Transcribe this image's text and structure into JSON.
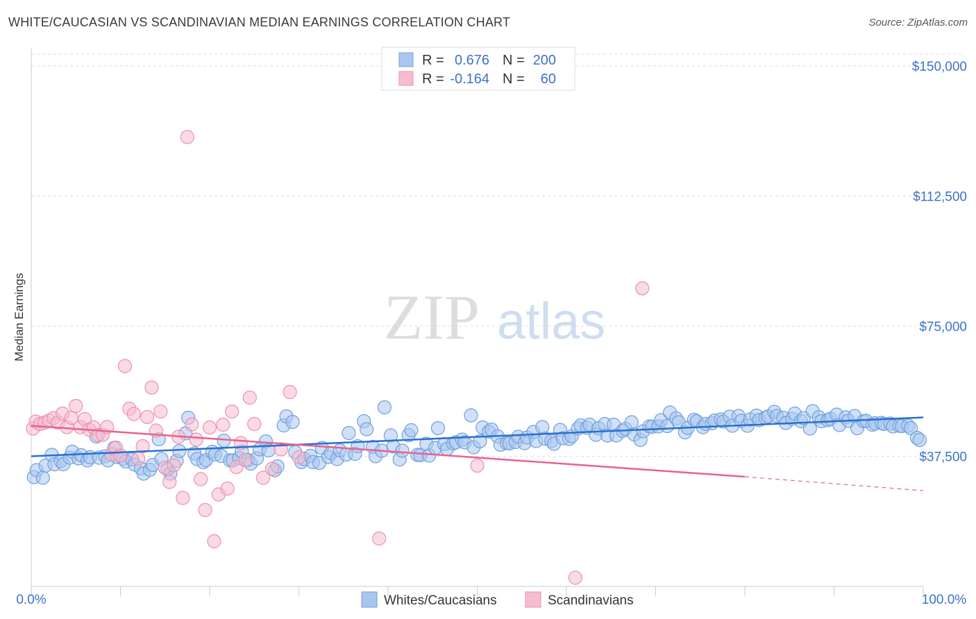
{
  "title": "WHITE/CAUCASIAN VS SCANDINAVIAN MEDIAN EARNINGS CORRELATION CHART",
  "source": "Source: ZipAtlas.com",
  "watermark": {
    "zip": "ZIP",
    "atlas": "atlas"
  },
  "colors": {
    "blue_fill": "#a9c6ef",
    "blue_stroke": "#6f9fde",
    "blue_line": "#2a6fcf",
    "pink_fill": "#f6bccf",
    "pink_stroke": "#ee8fae",
    "pink_line": "#e8628f",
    "tick_text": "#3d72c7",
    "grid": "#d9dde3"
  },
  "legend": {
    "rows": [
      {
        "r_label": "R =",
        "r_value": "0.676",
        "n_label": "N =",
        "n_value": "200"
      },
      {
        "r_label": "R =",
        "r_value": "-0.164",
        "n_label": "N =",
        "n_value": "60"
      }
    ]
  },
  "bottom_legend": [
    "Whites/Caucasians",
    "Scandinavians"
  ],
  "chart_data": {
    "type": "scatter",
    "title": "WHITE/CAUCASIAN VS SCANDINAVIAN MEDIAN EARNINGS CORRELATION CHART",
    "xlabel": "",
    "ylabel": "Median Earnings",
    "xlim": [
      0,
      100
    ],
    "ylim": [
      0,
      155000
    ],
    "x_tick_labels": [
      "0.0%",
      "100.0%"
    ],
    "y_ticks": [
      37500,
      75000,
      112500,
      150000
    ],
    "y_tick_labels": [
      "$37,500",
      "$75,000",
      "$112,500",
      "$150,000"
    ],
    "grid": true,
    "legend_position": "top-center",
    "series": [
      {
        "name": "Whites/Caucasians",
        "r": 0.676,
        "n": 200,
        "trend": {
          "x0": 0,
          "y0": 37500,
          "x1": 100,
          "y1": 48700
        },
        "points": [
          [
            0.3,
            31500
          ],
          [
            0.6,
            33500
          ],
          [
            1.3,
            31300
          ],
          [
            1.6,
            34800
          ],
          [
            2.3,
            37900
          ],
          [
            2.6,
            35200
          ],
          [
            3.3,
            36100
          ],
          [
            3.6,
            35200
          ],
          [
            4.3,
            37100
          ],
          [
            4.6,
            38800
          ],
          [
            5.3,
            36900
          ],
          [
            5.6,
            37800
          ],
          [
            6.3,
            36300
          ],
          [
            6.6,
            37200
          ],
          [
            7.3,
            43200
          ],
          [
            7.6,
            37100
          ],
          [
            8.3,
            37500
          ],
          [
            8.6,
            36300
          ],
          [
            9.3,
            39900
          ],
          [
            9.6,
            37300
          ],
          [
            10.3,
            36800
          ],
          [
            10.6,
            36000
          ],
          [
            11.3,
            36600
          ],
          [
            11.6,
            35100
          ],
          [
            12.3,
            34000
          ],
          [
            12.6,
            32500
          ],
          [
            13.3,
            33600
          ],
          [
            13.6,
            35000
          ],
          [
            14.3,
            42400
          ],
          [
            14.6,
            36700
          ],
          [
            15.3,
            33800
          ],
          [
            15.6,
            32500
          ],
          [
            16.3,
            36200
          ],
          [
            16.6,
            39000
          ],
          [
            17.3,
            44100
          ],
          [
            17.6,
            48600
          ],
          [
            18.3,
            38300
          ],
          [
            18.6,
            36700
          ],
          [
            19.3,
            35800
          ],
          [
            19.6,
            36400
          ],
          [
            20.3,
            38800
          ],
          [
            20.6,
            38000
          ],
          [
            21.3,
            37600
          ],
          [
            21.6,
            42000
          ],
          [
            22.3,
            36300
          ],
          [
            22.6,
            36300
          ],
          [
            23.3,
            37000
          ],
          [
            23.6,
            38900
          ],
          [
            24.3,
            36400
          ],
          [
            24.6,
            35400
          ],
          [
            25.3,
            36900
          ],
          [
            25.6,
            39500
          ],
          [
            26.3,
            41800
          ],
          [
            26.6,
            39200
          ],
          [
            27.3,
            33500
          ],
          [
            27.6,
            34600
          ],
          [
            28.3,
            46400
          ],
          [
            28.6,
            49000
          ],
          [
            29.3,
            47400
          ],
          [
            29.6,
            38700
          ],
          [
            30.3,
            35800
          ],
          [
            30.6,
            36700
          ],
          [
            31.3,
            37600
          ],
          [
            31.6,
            35800
          ],
          [
            32.3,
            35600
          ],
          [
            32.6,
            39900
          ],
          [
            33.3,
            37300
          ],
          [
            33.6,
            38400
          ],
          [
            34.3,
            36700
          ],
          [
            34.6,
            39200
          ],
          [
            35.3,
            38000
          ],
          [
            35.6,
            44200
          ],
          [
            36.3,
            38200
          ],
          [
            36.6,
            40400
          ],
          [
            37.3,
            47600
          ],
          [
            37.6,
            45300
          ],
          [
            38.3,
            40200
          ],
          [
            38.6,
            37500
          ],
          [
            39.3,
            39100
          ],
          [
            39.6,
            51600
          ],
          [
            40.3,
            43500
          ],
          [
            40.6,
            40300
          ],
          [
            41.3,
            36600
          ],
          [
            41.6,
            39100
          ],
          [
            42.3,
            43600
          ],
          [
            42.6,
            45000
          ],
          [
            43.3,
            37900
          ],
          [
            43.6,
            37800
          ],
          [
            44.3,
            41100
          ],
          [
            44.6,
            37700
          ],
          [
            45.3,
            39900
          ],
          [
            45.6,
            45600
          ],
          [
            46.3,
            41000
          ],
          [
            46.6,
            39600
          ],
          [
            47.3,
            41200
          ],
          [
            47.6,
            41500
          ],
          [
            48.3,
            42300
          ],
          [
            48.6,
            41500
          ],
          [
            49.3,
            49300
          ],
          [
            49.6,
            40100
          ],
          [
            50.3,
            41800
          ],
          [
            50.6,
            45800
          ],
          [
            51.3,
            44600
          ],
          [
            51.6,
            45200
          ],
          [
            52.3,
            43200
          ],
          [
            52.6,
            40800
          ],
          [
            53.3,
            41300
          ],
          [
            53.6,
            41200
          ],
          [
            54.3,
            41600
          ],
          [
            54.6,
            43100
          ],
          [
            55.3,
            41300
          ],
          [
            55.6,
            42900
          ],
          [
            56.3,
            44500
          ],
          [
            56.6,
            41900
          ],
          [
            57.3,
            45900
          ],
          [
            57.6,
            42600
          ],
          [
            58.3,
            41900
          ],
          [
            58.6,
            41100
          ],
          [
            59.3,
            45100
          ],
          [
            59.6,
            42700
          ],
          [
            60.3,
            42500
          ],
          [
            60.6,
            43300
          ],
          [
            61.3,
            45500
          ],
          [
            61.6,
            46400
          ],
          [
            62.3,
            45700
          ],
          [
            62.6,
            46600
          ],
          [
            63.3,
            43700
          ],
          [
            63.6,
            45600
          ],
          [
            64.3,
            46800
          ],
          [
            64.6,
            43500
          ],
          [
            65.3,
            46600
          ],
          [
            65.6,
            43500
          ],
          [
            66.3,
            44800
          ],
          [
            66.6,
            45400
          ],
          [
            67.3,
            47300
          ],
          [
            67.6,
            43800
          ],
          [
            68.3,
            42200
          ],
          [
            68.6,
            44700
          ],
          [
            69.3,
            46100
          ],
          [
            69.6,
            46000
          ],
          [
            70.3,
            46100
          ],
          [
            70.6,
            47900
          ],
          [
            71.3,
            46200
          ],
          [
            71.6,
            50100
          ],
          [
            72.3,
            48400
          ],
          [
            72.6,
            47300
          ],
          [
            73.3,
            44400
          ],
          [
            73.6,
            45700
          ],
          [
            74.3,
            48000
          ],
          [
            74.6,
            47600
          ],
          [
            75.3,
            45900
          ],
          [
            75.6,
            46800
          ],
          [
            76.3,
            47000
          ],
          [
            76.6,
            47800
          ],
          [
            77.3,
            48100
          ],
          [
            77.6,
            47500
          ],
          [
            78.3,
            48900
          ],
          [
            78.6,
            46300
          ],
          [
            79.3,
            49100
          ],
          [
            79.6,
            47700
          ],
          [
            80.3,
            46300
          ],
          [
            80.6,
            48100
          ],
          [
            81.3,
            49200
          ],
          [
            81.6,
            47900
          ],
          [
            82.3,
            48600
          ],
          [
            82.6,
            49000
          ],
          [
            83.3,
            50300
          ],
          [
            83.6,
            49100
          ],
          [
            84.3,
            48600
          ],
          [
            84.6,
            47100
          ],
          [
            85.3,
            48300
          ],
          [
            85.6,
            49800
          ],
          [
            86.3,
            47600
          ],
          [
            86.6,
            48500
          ],
          [
            87.3,
            45500
          ],
          [
            87.6,
            50500
          ],
          [
            88.3,
            48700
          ],
          [
            88.6,
            47600
          ],
          [
            89.3,
            47900
          ],
          [
            89.6,
            48300
          ],
          [
            90.3,
            49500
          ],
          [
            90.6,
            46500
          ],
          [
            91.3,
            48700
          ],
          [
            91.6,
            47700
          ],
          [
            92.3,
            49100
          ],
          [
            92.6,
            45600
          ],
          [
            93.3,
            47600
          ],
          [
            93.6,
            47700
          ],
          [
            94.3,
            46600
          ],
          [
            94.6,
            47000
          ],
          [
            95.3,
            47100
          ],
          [
            95.6,
            46800
          ],
          [
            96.3,
            46900
          ],
          [
            96.6,
            46100
          ],
          [
            97.3,
            46300
          ],
          [
            97.6,
            46200
          ],
          [
            98.3,
            46300
          ],
          [
            98.6,
            45600
          ],
          [
            99.3,
            42800
          ],
          [
            99.6,
            42200
          ]
        ]
      },
      {
        "name": "Scandinavians",
        "r": -0.164,
        "n": 60,
        "trend": {
          "x0": 0,
          "y0": 46300,
          "x1": 80,
          "y1": 31600,
          "dash_x1": 100,
          "dash_y1": 27600
        },
        "points": [
          [
            0.2,
            45500
          ],
          [
            0.5,
            47500
          ],
          [
            1.0,
            46800
          ],
          [
            1.5,
            47200
          ],
          [
            2.0,
            47800
          ],
          [
            2.5,
            48500
          ],
          [
            3.0,
            47200
          ],
          [
            3.5,
            49800
          ],
          [
            4.0,
            45900
          ],
          [
            4.5,
            48600
          ],
          [
            5.0,
            52000
          ],
          [
            5.5,
            45900
          ],
          [
            6.0,
            48200
          ],
          [
            6.5,
            45200
          ],
          [
            7.0,
            45800
          ],
          [
            7.5,
            43600
          ],
          [
            8.0,
            43700
          ],
          [
            8.5,
            45900
          ],
          [
            9.0,
            38100
          ],
          [
            9.5,
            40000
          ],
          [
            10.0,
            37700
          ],
          [
            10.5,
            63500
          ],
          [
            11.0,
            51200
          ],
          [
            11.5,
            49700
          ],
          [
            12.0,
            36800
          ],
          [
            12.5,
            40400
          ],
          [
            13.0,
            48800
          ],
          [
            13.5,
            57300
          ],
          [
            14.0,
            44900
          ],
          [
            14.5,
            50400
          ],
          [
            15.0,
            34200
          ],
          [
            15.5,
            30100
          ],
          [
            16.0,
            34900
          ],
          [
            16.5,
            43100
          ],
          [
            17.0,
            25500
          ],
          [
            17.5,
            129500
          ],
          [
            18.0,
            46700
          ],
          [
            18.5,
            42300
          ],
          [
            19.0,
            30900
          ],
          [
            19.5,
            22000
          ],
          [
            20.0,
            45800
          ],
          [
            20.5,
            13000
          ],
          [
            21.0,
            26500
          ],
          [
            21.5,
            46600
          ],
          [
            22.0,
            28200
          ],
          [
            22.5,
            50400
          ],
          [
            23.0,
            34400
          ],
          [
            23.5,
            41300
          ],
          [
            24.0,
            36400
          ],
          [
            24.5,
            54400
          ],
          [
            25.0,
            46800
          ],
          [
            26.0,
            31300
          ],
          [
            27.0,
            33900
          ],
          [
            28.0,
            39500
          ],
          [
            29.0,
            56000
          ],
          [
            30.0,
            37200
          ],
          [
            39.0,
            13800
          ],
          [
            50.0,
            34800
          ],
          [
            61.0,
            2500
          ],
          [
            68.5,
            85900
          ]
        ]
      }
    ]
  }
}
